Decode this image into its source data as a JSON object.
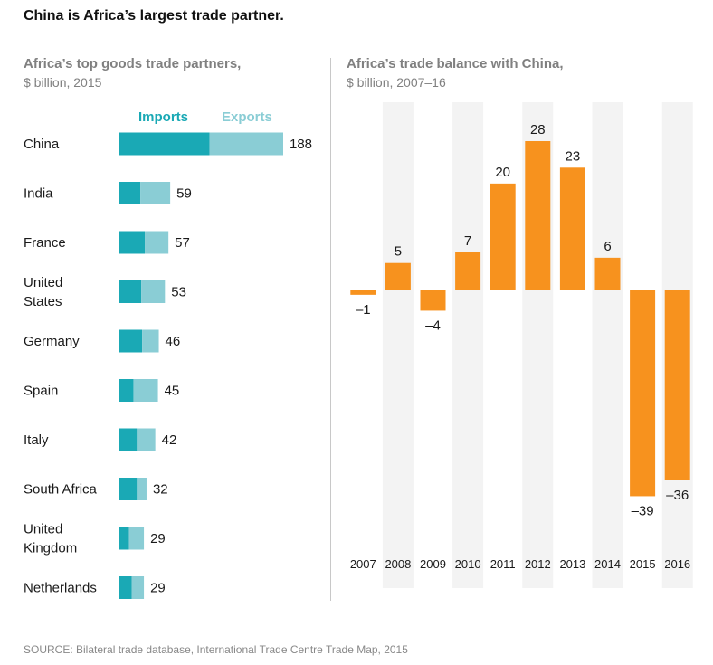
{
  "title": "China is Africa’s largest trade partner.",
  "left_panel": {
    "title": "Africa’s top goods trade partners,",
    "subtitle": "$ billion, 2015"
  },
  "right_panel": {
    "title": "Africa’s trade balance with China,",
    "subtitle": "$ billion, 2007–16"
  },
  "legend": {
    "imports": "Imports",
    "exports": "Exports"
  },
  "colors": {
    "imports": "#1aa9b5",
    "exports": "#8acdd5",
    "balance": "#f7921e",
    "column_band": "#f3f3f3"
  },
  "source": "SOURCE: Bilateral trade database, International Trade Centre Trade Map, 2015",
  "chart_data": [
    {
      "type": "bar",
      "orientation": "horizontal",
      "stacked": true,
      "categories": [
        [
          "China"
        ],
        [
          "India"
        ],
        [
          "France"
        ],
        [
          "United",
          "States"
        ],
        [
          "Germany"
        ],
        [
          "Spain"
        ],
        [
          "Italy"
        ],
        [
          "South Africa"
        ],
        [
          "United",
          "Kingdom"
        ],
        [
          "Netherlands"
        ]
      ],
      "totals": [
        188,
        59,
        57,
        53,
        46,
        45,
        42,
        32,
        29,
        29
      ],
      "series": [
        {
          "name": "Imports",
          "values": [
            104,
            25,
            30,
            26,
            27,
            17,
            21,
            21,
            12,
            15
          ]
        },
        {
          "name": "Exports",
          "values": [
            84,
            34,
            27,
            27,
            19,
            28,
            21,
            11,
            17,
            14
          ]
        }
      ]
    },
    {
      "type": "bar",
      "orientation": "vertical",
      "categories": [
        "2007",
        "2008",
        "2009",
        "2010",
        "2011",
        "2012",
        "2013",
        "2014",
        "2015",
        "2016"
      ],
      "values": [
        -1,
        5,
        -4,
        7,
        20,
        28,
        23,
        6,
        -39,
        -36
      ],
      "value_labels": [
        "–1",
        "5",
        "–4",
        "7",
        "20",
        "28",
        "23",
        "6",
        "–39",
        "–36"
      ]
    }
  ]
}
